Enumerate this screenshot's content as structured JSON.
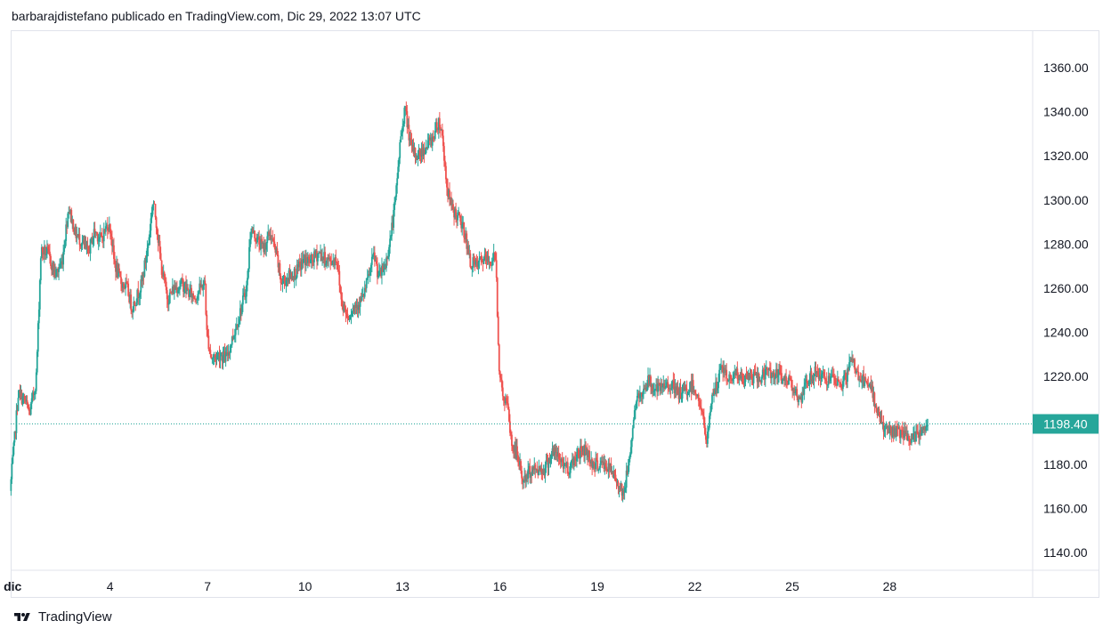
{
  "header": {
    "publisher_line": "barbarajdistefano publicado en TradingView.com, Dic 29, 2022 13:07 UTC"
  },
  "footer": {
    "brand": "TradingView",
    "logo_icon": "tradingview-logo-icon"
  },
  "colors": {
    "up": "#26a69a",
    "down": "#ef5350",
    "last_price_line": "#26a69a",
    "price_tag_bg": "#26a69a",
    "grid_border": "#e0e3eb"
  },
  "chart_data": {
    "type": "candlestick",
    "y_axis": {
      "position": "right",
      "ticks": [
        "1140.00",
        "1160.00",
        "1180.00",
        "1200.00",
        "1220.00",
        "1240.00",
        "1260.00",
        "1280.00",
        "1300.00",
        "1320.00",
        "1340.00",
        "1360.00"
      ],
      "tick_values": [
        1140,
        1160,
        1180,
        1200,
        1220,
        1240,
        1260,
        1280,
        1300,
        1320,
        1340,
        1360
      ],
      "range": [
        1132,
        1377
      ]
    },
    "x_axis": {
      "tick_labels": [
        "dic",
        "4",
        "7",
        "10",
        "13",
        "16",
        "19",
        "22",
        "25",
        "28"
      ],
      "tick_days": [
        1,
        4,
        7,
        10,
        13,
        16,
        19,
        22,
        25,
        28
      ],
      "range_days": [
        0.94,
        32.4
      ]
    },
    "last_price": 1198.4,
    "last_price_label": "1198.40",
    "grid": false,
    "anchors": [
      [
        0.95,
        1168
      ],
      [
        1.05,
        1185
      ],
      [
        1.2,
        1212
      ],
      [
        1.4,
        1209
      ],
      [
        1.55,
        1203
      ],
      [
        1.75,
        1218
      ],
      [
        1.9,
        1277
      ],
      [
        2.1,
        1276
      ],
      [
        2.35,
        1266
      ],
      [
        2.55,
        1272
      ],
      [
        2.75,
        1297
      ],
      [
        2.95,
        1285
      ],
      [
        3.15,
        1281
      ],
      [
        3.35,
        1276
      ],
      [
        3.55,
        1286
      ],
      [
        3.75,
        1282
      ],
      [
        3.95,
        1289
      ],
      [
        4.05,
        1286
      ],
      [
        4.15,
        1272
      ],
      [
        4.35,
        1263
      ],
      [
        4.55,
        1260
      ],
      [
        4.7,
        1251
      ],
      [
        4.9,
        1258
      ],
      [
        5.0,
        1262
      ],
      [
        5.2,
        1280
      ],
      [
        5.35,
        1300
      ],
      [
        5.45,
        1290
      ],
      [
        5.6,
        1270
      ],
      [
        5.8,
        1255
      ],
      [
        6.0,
        1260
      ],
      [
        6.25,
        1262
      ],
      [
        6.45,
        1258
      ],
      [
        6.65,
        1256
      ],
      [
        6.85,
        1261
      ],
      [
        6.95,
        1262
      ],
      [
        7.0,
        1240
      ],
      [
        7.15,
        1228
      ],
      [
        7.4,
        1230
      ],
      [
        7.6,
        1228
      ],
      [
        7.85,
        1240
      ],
      [
        8.05,
        1250
      ],
      [
        8.25,
        1262
      ],
      [
        8.35,
        1287
      ],
      [
        8.55,
        1282
      ],
      [
        8.75,
        1278
      ],
      [
        8.95,
        1285
      ],
      [
        9.15,
        1275
      ],
      [
        9.3,
        1262
      ],
      [
        9.5,
        1265
      ],
      [
        9.75,
        1267
      ],
      [
        10.0,
        1273
      ],
      [
        10.2,
        1272
      ],
      [
        10.45,
        1276
      ],
      [
        10.65,
        1273
      ],
      [
        10.85,
        1272
      ],
      [
        11.0,
        1274
      ],
      [
        11.15,
        1254
      ],
      [
        11.35,
        1247
      ],
      [
        11.55,
        1252
      ],
      [
        11.8,
        1255
      ],
      [
        12.0,
        1266
      ],
      [
        12.15,
        1275
      ],
      [
        12.3,
        1265
      ],
      [
        12.5,
        1270
      ],
      [
        12.65,
        1282
      ],
      [
        12.8,
        1298
      ],
      [
        12.95,
        1325
      ],
      [
        13.1,
        1342
      ],
      [
        13.3,
        1323
      ],
      [
        13.5,
        1320
      ],
      [
        13.75,
        1324
      ],
      [
        13.95,
        1328
      ],
      [
        14.15,
        1336
      ],
      [
        14.25,
        1330
      ],
      [
        14.4,
        1305
      ],
      [
        14.55,
        1296
      ],
      [
        14.75,
        1292
      ],
      [
        14.95,
        1285
      ],
      [
        15.1,
        1272
      ],
      [
        15.3,
        1270
      ],
      [
        15.5,
        1273
      ],
      [
        15.75,
        1272
      ],
      [
        15.9,
        1275
      ],
      [
        16.0,
        1225
      ],
      [
        16.1,
        1212
      ],
      [
        16.25,
        1207
      ],
      [
        16.4,
        1188
      ],
      [
        16.55,
        1185
      ],
      [
        16.75,
        1172
      ],
      [
        16.95,
        1177
      ],
      [
        17.15,
        1178
      ],
      [
        17.4,
        1178
      ],
      [
        17.65,
        1186
      ],
      [
        17.95,
        1181
      ],
      [
        18.15,
        1178
      ],
      [
        18.4,
        1185
      ],
      [
        18.65,
        1187
      ],
      [
        18.9,
        1180
      ],
      [
        19.2,
        1180
      ],
      [
        19.4,
        1178
      ],
      [
        19.65,
        1172
      ],
      [
        19.85,
        1167
      ],
      [
        20.0,
        1182
      ],
      [
        20.2,
        1207
      ],
      [
        20.4,
        1213
      ],
      [
        20.6,
        1218
      ],
      [
        20.8,
        1214
      ],
      [
        21.0,
        1214
      ],
      [
        21.25,
        1217
      ],
      [
        21.5,
        1212
      ],
      [
        21.75,
        1213
      ],
      [
        21.95,
        1216
      ],
      [
        22.1,
        1212
      ],
      [
        22.25,
        1203
      ],
      [
        22.4,
        1189
      ],
      [
        22.55,
        1212
      ],
      [
        22.7,
        1215
      ],
      [
        22.85,
        1225
      ],
      [
        23.05,
        1218
      ],
      [
        23.25,
        1222
      ],
      [
        23.5,
        1218
      ],
      [
        23.75,
        1220
      ],
      [
        24.0,
        1219
      ],
      [
        24.25,
        1222
      ],
      [
        24.5,
        1221
      ],
      [
        24.75,
        1219
      ],
      [
        24.95,
        1218
      ],
      [
        25.1,
        1215
      ],
      [
        25.25,
        1207
      ],
      [
        25.5,
        1218
      ],
      [
        25.75,
        1222
      ],
      [
        26.0,
        1219
      ],
      [
        26.25,
        1218
      ],
      [
        26.5,
        1216
      ],
      [
        26.7,
        1220
      ],
      [
        26.85,
        1228
      ],
      [
        27.0,
        1222
      ],
      [
        27.25,
        1217
      ],
      [
        27.45,
        1214
      ],
      [
        27.65,
        1205
      ],
      [
        27.85,
        1196
      ],
      [
        28.05,
        1195
      ],
      [
        28.3,
        1195
      ],
      [
        28.55,
        1192
      ],
      [
        28.75,
        1191
      ],
      [
        28.95,
        1195
      ],
      [
        29.1,
        1196
      ],
      [
        29.2,
        1198.4
      ]
    ]
  }
}
